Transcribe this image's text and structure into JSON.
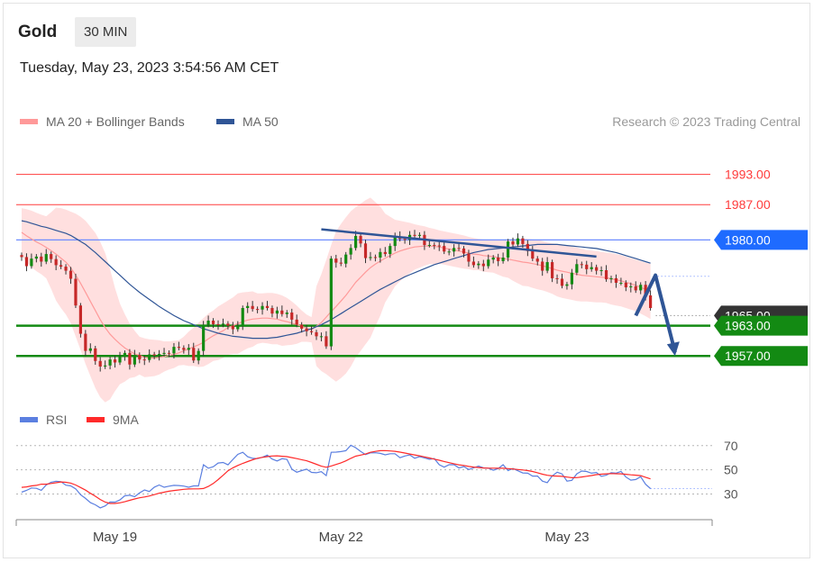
{
  "header": {
    "symbol": "Gold",
    "timeframe_label": "30 MIN",
    "timestamp": "Tuesday, May 23, 2023 3:54:56 AM CET",
    "copyright": "Research © 2023 Trading Central"
  },
  "legend": [
    {
      "label": "MA 20 + Bollinger Bands",
      "color": "#ff9999"
    },
    {
      "label": "MA 50",
      "color": "#2f5596"
    }
  ],
  "rsi_legend": [
    {
      "label": "RSI",
      "color": "#5b7fe0"
    },
    {
      "label": "9MA",
      "color": "#ff2a2a"
    }
  ],
  "colors": {
    "resistance": "#ff3b3b",
    "pivot": "#1e6bff",
    "support": "#138a13",
    "current": "#333333",
    "trend": "#2f5596",
    "band_fill": "#ffd9d9",
    "candle_up": "#138a13",
    "candle_down": "#c62828"
  },
  "chart_data": [
    {
      "type": "candlestick",
      "title": "Gold",
      "timeframe": "30 MIN",
      "ylim": [
        1949,
        1999
      ],
      "x_ticks": [
        {
          "index": 19,
          "label": "May 19"
        },
        {
          "index": 65,
          "label": "May 22"
        },
        {
          "index": 111,
          "label": "May 23"
        }
      ],
      "levels": [
        {
          "value": 1993.0,
          "label": "1993.00",
          "kind": "resistance"
        },
        {
          "value": 1987.0,
          "label": "1987.00",
          "kind": "resistance"
        },
        {
          "value": 1980.0,
          "label": "1980.00",
          "kind": "pivot"
        },
        {
          "value": 1965.0,
          "label": "1965.00",
          "kind": "current"
        },
        {
          "value": 1963.0,
          "label": "1963.00",
          "kind": "support"
        },
        {
          "value": 1957.0,
          "label": "1957.00",
          "kind": "support"
        }
      ],
      "close": [
        1976.6,
        1974.8,
        1976.3,
        1976.7,
        1975.7,
        1977.2,
        1976.2,
        1975.0,
        1974.7,
        1973.9,
        1972.3,
        1967.0,
        1961.4,
        1958.0,
        1958.5,
        1956.0,
        1954.9,
        1955.1,
        1956.3,
        1955.7,
        1956.8,
        1957.6,
        1955.3,
        1957.2,
        1956.3,
        1956.2,
        1957.3,
        1957.1,
        1957.4,
        1957.6,
        1957.5,
        1958.8,
        1958.6,
        1958.2,
        1958.6,
        1956.1,
        1958.0,
        1963.2,
        1964.0,
        1963.3,
        1963.2,
        1963.4,
        1963.0,
        1962.3,
        1962.9,
        1966.5,
        1966.9,
        1966.3,
        1966.2,
        1966.9,
        1966.5,
        1965.4,
        1966.0,
        1965.3,
        1965.6,
        1964.2,
        1963.2,
        1962.4,
        1961.9,
        1961.7,
        1960.9,
        1960.9,
        1958.9,
        1976.3,
        1975.5,
        1975.3,
        1977.1,
        1978.4,
        1980.8,
        1979.3,
        1976.4,
        1976.6,
        1976.5,
        1977.6,
        1977.2,
        1978.8,
        1980.7,
        1980.2,
        1980.0,
        1981.0,
        1980.8,
        1981.0,
        1979.0,
        1979.0,
        1978.9,
        1978.8,
        1977.7,
        1977.7,
        1978.4,
        1978.3,
        1977.3,
        1975.7,
        1975.0,
        1975.3,
        1974.8,
        1976.1,
        1976.5,
        1975.8,
        1976.5,
        1979.7,
        1979.1,
        1980.3,
        1979.2,
        1977.8,
        1976.3,
        1975.7,
        1973.9,
        1975.6,
        1972.4,
        1972.3,
        1970.9,
        1971.2,
        1973.5,
        1975.2,
        1975.1,
        1974.2,
        1974.6,
        1973.9,
        1974.0,
        1972.2,
        1972.4,
        1971.5,
        1971.5,
        1970.6,
        1970.8,
        1970.0,
        1971.1,
        1969.0,
        1966.5
      ],
      "ma20": [
        1981.5,
        1980.8,
        1980.2,
        1979.6,
        1979.1,
        1978.5,
        1977.9,
        1977.2,
        1976.4,
        1975.6,
        1974.5,
        1973.0,
        1971.4,
        1969.6,
        1967.8,
        1966.0,
        1964.2,
        1962.6,
        1961.3,
        1960.3,
        1959.4,
        1958.6,
        1958.0,
        1957.4,
        1957.1,
        1956.7,
        1956.6,
        1956.6,
        1956.7,
        1956.9,
        1957.1,
        1957.3,
        1957.6,
        1958.0,
        1958.4,
        1958.8,
        1959.2,
        1959.7,
        1960.4,
        1961.0,
        1961.5,
        1962.0,
        1962.6,
        1963.0,
        1963.4,
        1963.8,
        1964.1,
        1964.3,
        1964.4,
        1964.5,
        1964.5,
        1964.4,
        1964.3,
        1964.0,
        1963.8,
        1963.5,
        1963.2,
        1962.9,
        1962.5,
        1962.2,
        1962.9,
        1963.6,
        1964.7,
        1965.8,
        1966.8,
        1967.9,
        1969.0,
        1970.3,
        1971.6,
        1972.6,
        1973.6,
        1974.5,
        1975.2,
        1975.8,
        1976.4,
        1976.9,
        1977.4,
        1977.8,
        1978.1,
        1978.4,
        1978.6,
        1978.7,
        1978.8,
        1978.8,
        1978.7,
        1978.6,
        1978.4,
        1978.2,
        1978.0,
        1977.8,
        1977.6,
        1977.4,
        1977.2,
        1977.1,
        1976.9,
        1976.8,
        1976.7,
        1976.5,
        1976.3,
        1976.2,
        1976.0,
        1975.8,
        1975.6,
        1975.5,
        1975.3,
        1975.1,
        1974.9,
        1974.6,
        1974.3,
        1974.0,
        1973.8,
        1973.6,
        1973.4,
        1973.2,
        1973.0,
        1972.9,
        1972.8,
        1972.7,
        1972.6,
        1972.5,
        1972.3,
        1972.1,
        1971.9,
        1971.6,
        1971.3,
        1971.0,
        1970.6,
        1970.2,
        1969.8
      ],
      "bb_upper": [
        1986.3,
        1986.1,
        1985.8,
        1985.4,
        1985.0,
        1984.7,
        1985.5,
        1986.4,
        1986.3,
        1986.0,
        1985.6,
        1985.2,
        1984.6,
        1983.8,
        1982.6,
        1981.4,
        1979.6,
        1977.4,
        1974.2,
        1970.5,
        1967.4,
        1965.3,
        1963.4,
        1962.0,
        1960.8,
        1960.5,
        1960.3,
        1960.2,
        1960.1,
        1959.9,
        1959.9,
        1960.0,
        1960.1,
        1960.8,
        1961.8,
        1962.6,
        1963.6,
        1964.5,
        1965.4,
        1966.0,
        1966.8,
        1967.4,
        1968.0,
        1968.6,
        1969.4,
        1969.6,
        1969.7,
        1969.8,
        1969.4,
        1969.4,
        1969.5,
        1969.5,
        1969.3,
        1969.0,
        1968.5,
        1967.8,
        1967.0,
        1966.0,
        1965.2,
        1964.7,
        1970.8,
        1973.2,
        1976.0,
        1979.0,
        1981.7,
        1983.2,
        1984.5,
        1985.7,
        1986.5,
        1987.2,
        1987.9,
        1988.4,
        1987.5,
        1986.6,
        1985.2,
        1984.6,
        1984.0,
        1983.8,
        1983.6,
        1983.4,
        1983.1,
        1982.9,
        1982.7,
        1982.4,
        1982.2,
        1981.9,
        1981.7,
        1981.5,
        1981.3,
        1981.1,
        1980.9,
        1980.6,
        1980.4,
        1980.2,
        1980.1,
        1980.0,
        1979.9,
        1979.9,
        1979.9,
        1979.9,
        1980.1,
        1980.2,
        1980.3,
        1980.2,
        1980.1,
        1980.0,
        1979.8,
        1979.5,
        1979.3,
        1979.2,
        1979.1,
        1978.9,
        1978.7,
        1978.5,
        1978.2,
        1978.0,
        1977.9,
        1977.8,
        1977.6,
        1977.5,
        1977.4,
        1977.2,
        1977.0,
        1976.7,
        1976.4,
        1976.1,
        1975.8,
        1975.5,
        1975.3
      ],
      "bb_lower": [
        1976.9,
        1975.6,
        1974.6,
        1973.8,
        1973.2,
        1972.4,
        1970.3,
        1968.0,
        1966.5,
        1965.2,
        1963.5,
        1960.8,
        1958.2,
        1955.4,
        1953.0,
        1950.6,
        1948.8,
        1947.8,
        1948.4,
        1950.0,
        1951.4,
        1951.9,
        1952.6,
        1952.8,
        1953.3,
        1952.8,
        1952.9,
        1953.0,
        1953.3,
        1953.9,
        1954.3,
        1954.6,
        1955.1,
        1955.2,
        1955.0,
        1955.0,
        1954.8,
        1954.9,
        1955.4,
        1956.0,
        1956.2,
        1956.6,
        1957.2,
        1957.4,
        1957.4,
        1958.0,
        1958.5,
        1958.8,
        1959.4,
        1959.6,
        1959.5,
        1959.3,
        1959.3,
        1959.0,
        1959.1,
        1959.2,
        1959.4,
        1959.8,
        1959.8,
        1959.7,
        1955.0,
        1954.0,
        1953.4,
        1952.6,
        1951.9,
        1952.6,
        1953.5,
        1954.9,
        1956.7,
        1958.0,
        1959.3,
        1960.6,
        1962.9,
        1965.0,
        1967.6,
        1969.2,
        1970.8,
        1971.8,
        1972.6,
        1973.4,
        1974.1,
        1974.5,
        1974.9,
        1975.2,
        1975.2,
        1975.3,
        1975.1,
        1974.9,
        1974.7,
        1974.5,
        1974.3,
        1974.2,
        1974.0,
        1974.0,
        1973.7,
        1973.6,
        1973.5,
        1973.1,
        1972.7,
        1972.5,
        1971.9,
        1971.4,
        1970.9,
        1970.8,
        1970.5,
        1970.2,
        1970.0,
        1969.7,
        1969.3,
        1968.8,
        1968.5,
        1968.3,
        1968.1,
        1967.9,
        1967.8,
        1967.8,
        1967.7,
        1967.6,
        1967.6,
        1967.5,
        1967.2,
        1967.0,
        1966.8,
        1966.5,
        1966.2,
        1965.9,
        1965.4,
        1964.9,
        1964.3
      ],
      "ma50": [
        1983.8,
        1983.6,
        1983.3,
        1983.0,
        1982.7,
        1982.5,
        1982.2,
        1981.9,
        1981.6,
        1981.3,
        1980.9,
        1980.3,
        1979.7,
        1979.1,
        1978.3,
        1977.5,
        1976.6,
        1975.7,
        1974.8,
        1973.9,
        1973.0,
        1972.1,
        1971.2,
        1970.4,
        1969.6,
        1968.9,
        1968.2,
        1967.5,
        1966.8,
        1966.2,
        1965.6,
        1965.0,
        1964.5,
        1964.0,
        1963.6,
        1963.2,
        1962.8,
        1962.4,
        1962.1,
        1961.8,
        1961.5,
        1961.3,
        1961.1,
        1960.9,
        1960.8,
        1960.7,
        1960.6,
        1960.5,
        1960.5,
        1960.5,
        1960.5,
        1960.6,
        1960.7,
        1960.9,
        1961.1,
        1961.3,
        1961.5,
        1961.8,
        1962.1,
        1962.4,
        1962.8,
        1963.2,
        1963.7,
        1964.2,
        1964.8,
        1965.4,
        1966.0,
        1966.6,
        1967.2,
        1967.8,
        1968.4,
        1969.0,
        1969.6,
        1970.2,
        1970.7,
        1971.2,
        1971.7,
        1972.2,
        1972.7,
        1973.1,
        1973.5,
        1973.9,
        1974.3,
        1974.7,
        1975.1,
        1975.4,
        1975.7,
        1976.0,
        1976.3,
        1976.6,
        1976.9,
        1977.2,
        1977.5,
        1977.7,
        1977.9,
        1978.1,
        1978.2,
        1978.3,
        1978.4,
        1978.5,
        1978.6,
        1978.7,
        1978.8,
        1978.9,
        1979.0,
        1979.1,
        1979.1,
        1979.1,
        1979.1,
        1979.1,
        1979.0,
        1978.9,
        1978.8,
        1978.7,
        1978.6,
        1978.5,
        1978.4,
        1978.3,
        1978.1,
        1977.9,
        1977.7,
        1977.5,
        1977.2,
        1976.9,
        1976.6,
        1976.3,
        1976.0,
        1975.7,
        1975.4
      ],
      "trendline": [
        {
          "index": 61,
          "value": 1982.1
        },
        {
          "index": 117,
          "value": 1976.7
        }
      ],
      "scenario": [
        {
          "index": 125,
          "value": 1965.0
        },
        {
          "index": 129,
          "value": 1973.0
        },
        {
          "index": 133,
          "value": 1957.7
        }
      ]
    },
    {
      "type": "line",
      "title": "RSI",
      "ylim": [
        17,
        81
      ],
      "y_ticks": [
        70,
        50,
        30
      ],
      "series": [
        {
          "name": "RSI",
          "color": "#5b7fe0",
          "values": [
            31.5,
            33.0,
            35.0,
            34.7,
            33.1,
            37.5,
            39.8,
            40.6,
            40.2,
            37.3,
            36.7,
            34.3,
            29.4,
            26.4,
            22.9,
            21.1,
            18.6,
            20.2,
            23.4,
            23.3,
            25.1,
            28.5,
            29.0,
            27.8,
            30.9,
            33.4,
            32.1,
            35.7,
            37.5,
            35.6,
            36.5,
            37.2,
            37.0,
            36.6,
            35.6,
            36.7,
            36.7,
            54.2,
            51.3,
            52.6,
            55.6,
            56.1,
            54.1,
            58.6,
            62.8,
            64.5,
            60.8,
            59.5,
            59.3,
            60.4,
            62.2,
            58.9,
            57.3,
            59.2,
            58.7,
            50.6,
            48.0,
            49.4,
            50.6,
            47.9,
            47.6,
            48.5,
            45.2,
            64.5,
            64.6,
            65.1,
            65.8,
            70.3,
            68.3,
            65.2,
            62.6,
            64.0,
            64.1,
            63.6,
            62.4,
            63.3,
            63.3,
            60.0,
            61.4,
            62.3,
            59.6,
            60.9,
            59.9,
            58.7,
            59.3,
            54.2,
            52.2,
            54.2,
            54.3,
            51.5,
            52.7,
            50.3,
            51.7,
            53.1,
            51.6,
            51.4,
            49.7,
            51.0,
            54.2,
            49.4,
            51.1,
            49.2,
            47.4,
            47.2,
            44.8,
            44.8,
            40.7,
            39.4,
            45.0,
            48.0,
            46.6,
            40.7,
            41.3,
            46.7,
            49.0,
            48.6,
            47.2,
            47.8,
            44.6,
            45.6,
            47.6,
            47.3,
            48.7,
            44.0,
            41.5,
            42.0,
            44.3,
            38.1,
            34.5
          ]
        },
        {
          "name": "9MA",
          "color": "#ff2a2a",
          "values": [
            35.5,
            35.9,
            36.7,
            37.2,
            38.1,
            38.1,
            38.7,
            39.3,
            40.0,
            39.7,
            39.0,
            37.5,
            35.4,
            33.2,
            30.6,
            28.2,
            25.5,
            23.3,
            22.2,
            22.2,
            22.7,
            23.6,
            24.8,
            25.9,
            26.9,
            27.6,
            28.4,
            29.5,
            30.7,
            31.5,
            32.3,
            32.9,
            33.4,
            33.9,
            34.2,
            34.3,
            34.3,
            34.6,
            36.3,
            38.7,
            41.9,
            45.5,
            49.2,
            51.7,
            53.6,
            55.3,
            56.8,
            58.3,
            59.6,
            60.3,
            60.9,
            61.4,
            61.6,
            61.2,
            60.9,
            60.1,
            59.3,
            58.4,
            57.5,
            56.1,
            54.6,
            53.0,
            52.1,
            53.2,
            54.4,
            55.8,
            57.4,
            59.5,
            61.3,
            62.2,
            63.1,
            64.5,
            65.2,
            65.8,
            65.9,
            65.6,
            65.3,
            64.6,
            63.9,
            63.1,
            62.3,
            61.6,
            60.7,
            59.8,
            58.8,
            57.9,
            56.9,
            55.9,
            55.0,
            54.1,
            53.6,
            52.8,
            52.3,
            51.9,
            51.5,
            51.4,
            51.4,
            51.3,
            51.3,
            51.0,
            50.7,
            50.3,
            49.9,
            49.4,
            48.6,
            47.6,
            46.4,
            45.5,
            45.0,
            44.8,
            44.6,
            44.0,
            43.5,
            43.6,
            44.1,
            44.7,
            45.3,
            46.0,
            46.4,
            46.7,
            46.9,
            46.8,
            46.7,
            46.3,
            45.9,
            45.6,
            45.2,
            43.9,
            42.5
          ]
        }
      ]
    }
  ]
}
